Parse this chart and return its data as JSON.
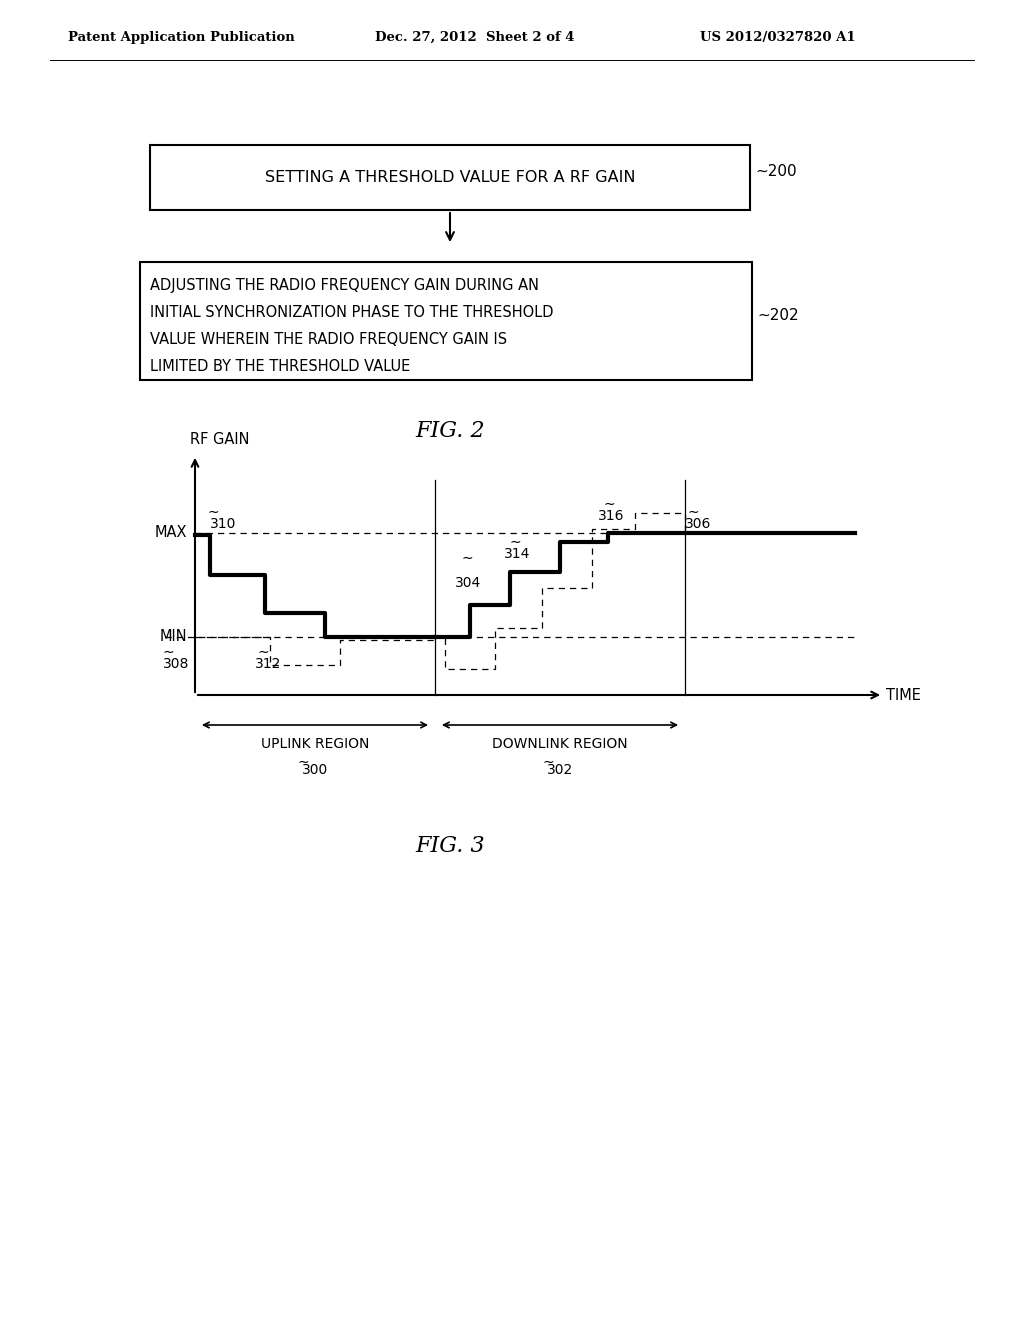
{
  "header_left": "Patent Application Publication",
  "header_mid": "Dec. 27, 2012  Sheet 2 of 4",
  "header_right": "US 2012/0327820 A1",
  "box1_text": "SETTING A THRESHOLD VALUE FOR A RF GAIN",
  "box1_label": "∼200",
  "box2_line1": "ADJUSTING THE RADIO FREQUENCY GAIN DURING AN",
  "box2_line2": "INITIAL SYNCHRONIZATION PHASE TO THE THRESHOLD",
  "box2_line3": "VALUE WHEREIN THE RADIO FREQUENCY GAIN IS",
  "box2_line4": "LIMITED BY THE THRESHOLD VALUE",
  "box2_label": "∼202",
  "fig2_caption": "FIG. 2",
  "fig3_caption": "FIG. 3",
  "ylabel": "RF GAIN",
  "xlabel": "TIME",
  "max_label": "MAX",
  "min_label": "MIN",
  "uplink_label": "UPLINK REGION",
  "uplink_num": "300",
  "downlink_label": "DOWNLINK REGION",
  "downlink_num": "302",
  "n310": "310",
  "n308": "308",
  "n312": "312",
  "n304": "304",
  "n314": "314",
  "n316": "316",
  "n306": "306"
}
